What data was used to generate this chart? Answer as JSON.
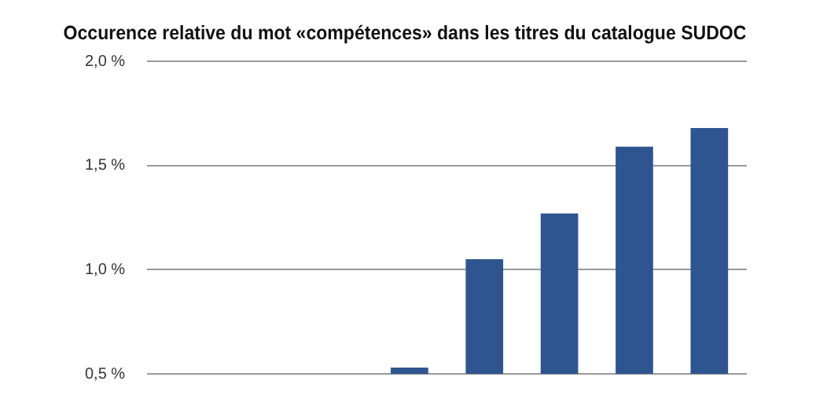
{
  "chart_data": {
    "type": "bar",
    "title": "Occurence relative du mot «compétences» dans les titres du catalogue SUDOC",
    "categories": [
      null,
      null,
      null,
      null,
      null,
      null,
      null,
      null
    ],
    "values": [
      null,
      null,
      null,
      0.53,
      1.05,
      1.27,
      1.59,
      1.68
    ],
    "color": "#2e5590",
    "ylim": [
      0.5,
      2.0
    ],
    "yticks": [
      {
        "value": 0.5,
        "label": "0,5 %"
      },
      {
        "value": 1.0,
        "label": "1,0 %"
      },
      {
        "value": 1.5,
        "label": "1,5 %"
      },
      {
        "value": 2.0,
        "label": "2,0 %"
      }
    ],
    "grid": "y",
    "legend": false
  }
}
